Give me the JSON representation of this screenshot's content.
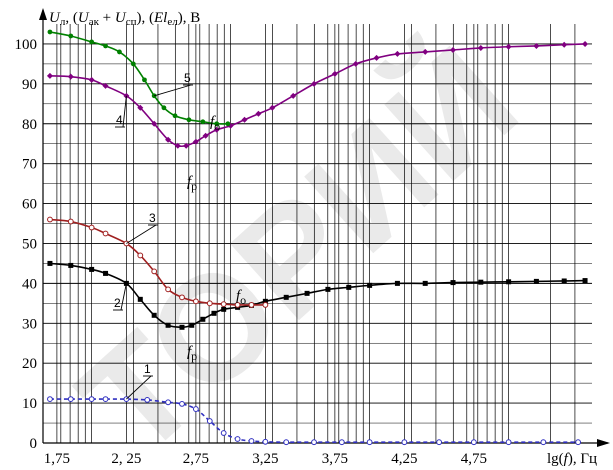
{
  "chart_data": {
    "type": "line",
    "ylabel_html": "U<sub>л</sub>, (U<sub>ак</sub> + U<sub>сп</sub>), (El<sub>ел</sub>), В",
    "ylabel_parts": [
      "U",
      "л",
      ", (",
      "U",
      "ак",
      " + ",
      "U",
      "сп",
      "), (",
      "El",
      "ел",
      "), В"
    ],
    "xlabel_parts": [
      "lg(",
      "f",
      "), Гц"
    ],
    "xlim": [
      1.65,
      5.6
    ],
    "ylim": [
      0,
      105
    ],
    "x_ticks": [
      "1,75",
      "2, 25",
      "2,75",
      "3,25",
      "3,75",
      "4,25",
      "4,75"
    ],
    "x_tick_values": [
      1.75,
      2.25,
      2.75,
      3.25,
      3.75,
      4.25,
      4.75
    ],
    "y_ticks": [
      0,
      10,
      20,
      30,
      40,
      50,
      60,
      70,
      80,
      90,
      100
    ],
    "grid": true,
    "series": [
      {
        "name": "1",
        "color": "#3030c0",
        "dashed": true,
        "marker": "circle-open",
        "x": [
          1.7,
          1.85,
          2.0,
          2.1,
          2.25,
          2.4,
          2.55,
          2.65,
          2.75,
          2.85,
          2.95,
          3.05,
          3.15,
          3.25,
          3.4,
          3.6,
          3.8,
          4.0,
          4.25,
          4.5,
          4.75,
          5.0,
          5.25,
          5.5
        ],
        "y": [
          11,
          11,
          11,
          11,
          11,
          10.8,
          10.2,
          9.8,
          8.5,
          5.5,
          2.5,
          1,
          0.5,
          0.3,
          0.2,
          0.2,
          0.2,
          0.2,
          0.2,
          0.2,
          0.2,
          0.2,
          0.2,
          0.2
        ]
      },
      {
        "name": "2",
        "color": "#000000",
        "dashed": false,
        "marker": "square",
        "x": [
          1.7,
          1.85,
          2.0,
          2.1,
          2.25,
          2.35,
          2.45,
          2.55,
          2.65,
          2.72,
          2.8,
          2.88,
          2.95,
          3.05,
          3.15,
          3.25,
          3.4,
          3.55,
          3.7,
          3.85,
          4.0,
          4.2,
          4.4,
          4.6,
          4.8,
          5.0,
          5.2,
          5.4,
          5.55
        ],
        "y": [
          45,
          44.5,
          43.5,
          42.5,
          40,
          36,
          32,
          29.5,
          29,
          29.5,
          31,
          32.5,
          33.5,
          34,
          34.5,
          35.5,
          36.5,
          37.5,
          38.5,
          39,
          39.5,
          40,
          40,
          40.2,
          40.3,
          40.4,
          40.5,
          40.6,
          40.7
        ]
      },
      {
        "name": "3",
        "color": "#a02020",
        "dashed": false,
        "marker": "circle-open",
        "x": [
          1.7,
          1.85,
          2.0,
          2.1,
          2.25,
          2.35,
          2.45,
          2.55,
          2.65,
          2.75,
          2.85,
          2.95,
          3.05,
          3.15,
          3.25
        ],
        "y": [
          56,
          55.5,
          54,
          52.5,
          50,
          47,
          43,
          38.5,
          36.5,
          35.5,
          35,
          34.8,
          34.6,
          34.6,
          34.6
        ]
      },
      {
        "name": "4",
        "color": "#800080",
        "dashed": false,
        "marker": "diamond",
        "x": [
          1.7,
          1.85,
          2.0,
          2.1,
          2.25,
          2.35,
          2.45,
          2.55,
          2.62,
          2.68,
          2.75,
          2.82,
          2.9,
          3.0,
          3.1,
          3.2,
          3.3,
          3.45,
          3.6,
          3.75,
          3.9,
          4.05,
          4.2,
          4.4,
          4.6,
          4.8,
          5.0,
          5.2,
          5.4,
          5.55
        ],
        "y": [
          92,
          91.8,
          91,
          89.5,
          87,
          84,
          80,
          76,
          74.5,
          74.5,
          75.5,
          77,
          78.5,
          79.5,
          81,
          82.5,
          84,
          87,
          90,
          92.5,
          95,
          96.5,
          97.5,
          98,
          98.5,
          99,
          99.3,
          99.5,
          99.8,
          100
        ]
      },
      {
        "name": "5",
        "color": "#008000",
        "dashed": false,
        "marker": "circle",
        "x": [
          1.7,
          1.85,
          2.0,
          2.1,
          2.2,
          2.3,
          2.38,
          2.45,
          2.52,
          2.6,
          2.7,
          2.8,
          2.9,
          2.98
        ],
        "y": [
          103,
          102,
          100.5,
          99.5,
          98,
          95,
          91,
          87,
          84,
          82,
          81,
          80.5,
          80,
          80
        ]
      }
    ],
    "annotations": [
      {
        "text": "1",
        "series": "1"
      },
      {
        "text": "2",
        "series": "2"
      },
      {
        "text": "3",
        "series": "3"
      },
      {
        "text": "4",
        "series": "4"
      },
      {
        "text": "5",
        "series": "5"
      },
      {
        "text": "f",
        "sub": "о",
        "near": "upper-right"
      },
      {
        "text": "f",
        "sub": "р",
        "near": "upper"
      },
      {
        "text": "f",
        "sub": "о",
        "near": "lower-right"
      },
      {
        "text": "f",
        "sub": "р",
        "near": "lower"
      }
    ],
    "watermark": "ТОРИЙ"
  },
  "colors": {
    "grid": "#000000",
    "axes": "#000000",
    "callout": "#000000"
  }
}
